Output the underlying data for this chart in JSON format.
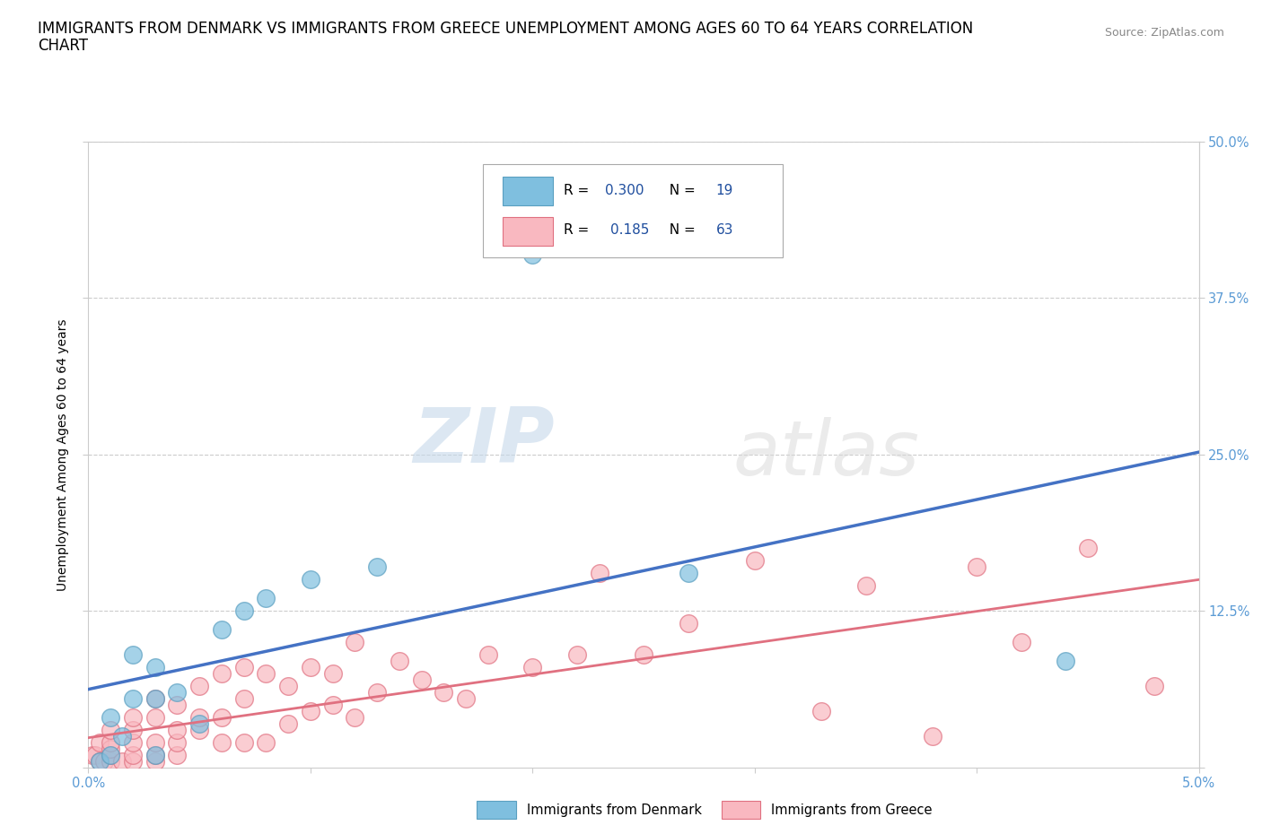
{
  "title_line1": "IMMIGRANTS FROM DENMARK VS IMMIGRANTS FROM GREECE UNEMPLOYMENT AMONG AGES 60 TO 64 YEARS CORRELATION",
  "title_line2": "CHART",
  "source": "Source: ZipAtlas.com",
  "ylabel": "Unemployment Among Ages 60 to 64 years",
  "xlim": [
    0.0,
    0.05
  ],
  "ylim": [
    0.0,
    0.5
  ],
  "xticks": [
    0.0,
    0.01,
    0.02,
    0.03,
    0.04,
    0.05
  ],
  "xticklabels": [
    "0.0%",
    "",
    "",
    "",
    "",
    "5.0%"
  ],
  "yticks": [
    0.0,
    0.125,
    0.25,
    0.375,
    0.5
  ],
  "yticklabels": [
    "",
    "12.5%",
    "25.0%",
    "37.5%",
    "50.0%"
  ],
  "denmark_color": "#7fbfdf",
  "denmark_edge": "#5a9fc0",
  "greece_color": "#f9b8c0",
  "greece_edge": "#e07080",
  "trend_denmark": "#4472c4",
  "trend_greece": "#e07080",
  "denmark_R": 0.3,
  "denmark_N": 19,
  "greece_R": 0.185,
  "greece_N": 63,
  "denmark_scatter_x": [
    0.0005,
    0.001,
    0.001,
    0.0015,
    0.002,
    0.002,
    0.003,
    0.003,
    0.003,
    0.004,
    0.005,
    0.006,
    0.007,
    0.008,
    0.01,
    0.013,
    0.02,
    0.027,
    0.044
  ],
  "denmark_scatter_y": [
    0.005,
    0.01,
    0.04,
    0.025,
    0.055,
    0.09,
    0.01,
    0.055,
    0.08,
    0.06,
    0.035,
    0.11,
    0.125,
    0.135,
    0.15,
    0.16,
    0.41,
    0.155,
    0.085
  ],
  "greece_scatter_x": [
    0.0002,
    0.0003,
    0.0005,
    0.0005,
    0.0007,
    0.001,
    0.001,
    0.001,
    0.001,
    0.001,
    0.0015,
    0.002,
    0.002,
    0.002,
    0.002,
    0.002,
    0.003,
    0.003,
    0.003,
    0.003,
    0.003,
    0.004,
    0.004,
    0.004,
    0.004,
    0.005,
    0.005,
    0.005,
    0.006,
    0.006,
    0.006,
    0.007,
    0.007,
    0.007,
    0.008,
    0.008,
    0.009,
    0.009,
    0.01,
    0.01,
    0.011,
    0.011,
    0.012,
    0.012,
    0.013,
    0.014,
    0.015,
    0.016,
    0.017,
    0.018,
    0.02,
    0.022,
    0.023,
    0.025,
    0.027,
    0.03,
    0.033,
    0.035,
    0.038,
    0.04,
    0.042,
    0.045,
    0.048
  ],
  "greece_scatter_y": [
    0.01,
    0.01,
    0.005,
    0.02,
    0.005,
    0.005,
    0.01,
    0.015,
    0.02,
    0.03,
    0.005,
    0.005,
    0.01,
    0.02,
    0.03,
    0.04,
    0.005,
    0.01,
    0.02,
    0.04,
    0.055,
    0.01,
    0.02,
    0.03,
    0.05,
    0.03,
    0.04,
    0.065,
    0.02,
    0.04,
    0.075,
    0.02,
    0.055,
    0.08,
    0.02,
    0.075,
    0.035,
    0.065,
    0.045,
    0.08,
    0.05,
    0.075,
    0.04,
    0.1,
    0.06,
    0.085,
    0.07,
    0.06,
    0.055,
    0.09,
    0.08,
    0.09,
    0.155,
    0.09,
    0.115,
    0.165,
    0.045,
    0.145,
    0.025,
    0.16,
    0.1,
    0.175,
    0.065
  ],
  "background_color": "#ffffff",
  "grid_color": "#cccccc",
  "watermark_zip": "ZIP",
  "watermark_atlas": "atlas",
  "title_fontsize": 12,
  "label_fontsize": 10,
  "tick_fontsize": 10.5,
  "axis_tick_color_right": "#5b9bd5",
  "axis_tick_color_bottom": "#5b9bd5",
  "legend_text_color": "#1f4e9e",
  "legend_label_denmark": "Immigrants from Denmark",
  "legend_label_greece": "Immigrants from Greece"
}
